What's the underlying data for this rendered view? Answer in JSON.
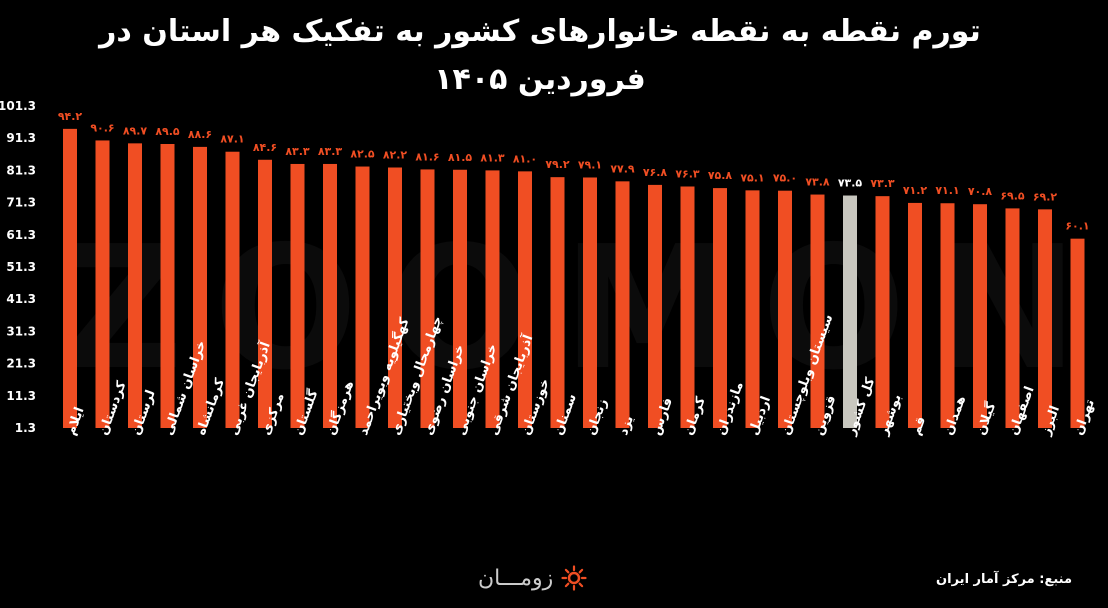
{
  "title_line1": "تورم نقطه به نقطه خانوارهای کشور به تفکیک هر استان در",
  "title_line2": "فروردین ۱۴۰۵",
  "source": "منبع: مرکز آمار ایران",
  "logo_text": "زومـــان",
  "watermark": "ZOOMON",
  "colors": {
    "bar": "#f04e23",
    "highlight": "#c8c7bf",
    "value_label": "#f04e23",
    "highlight_label": "#ffffff"
  },
  "chart_data": {
    "type": "bar",
    "title": "تورم نقطه به نقطه خانوارهای کشور به تفکیک هر استان در فروردین ۱۴۰۵",
    "ylim": [
      1.3,
      101.3
    ],
    "yticks": [
      "101.3",
      "91.3",
      "81.3",
      "71.3",
      "61.3",
      "51.3",
      "41.3",
      "31.3",
      "21.3",
      "11.3",
      "1.3"
    ],
    "highlight": "کل کشور",
    "categories": [
      "ایلام",
      "کردستان",
      "لرستان",
      "خراسان شمالی",
      "کرمانشاه",
      "آذربایجان غربی",
      "مرکزی",
      "گلستان",
      "هرمزگان",
      "کهگیلویه وبویراحمد",
      "چهارمحال وبختیاری",
      "خراسان رضوی",
      "خراسان جنوبی",
      "آذربایجان شرقی",
      "خوزستان",
      "سمنان",
      "زنجان",
      "یزد",
      "فارس",
      "کرمان",
      "مازندران",
      "اردبیل",
      "سیستان وبلوچستان",
      "قزوین",
      "کل کشور",
      "بوشهر",
      "قم",
      "همدان",
      "گیلان",
      "اصفهان",
      "البرز",
      "تهران"
    ],
    "values": [
      94.2,
      90.6,
      89.7,
      89.5,
      88.6,
      87.1,
      84.6,
      83.3,
      83.3,
      82.5,
      82.2,
      81.6,
      81.5,
      81.3,
      81.0,
      79.2,
      79.1,
      77.9,
      76.8,
      76.3,
      75.8,
      75.1,
      75.0,
      73.8,
      73.5,
      73.3,
      71.2,
      71.1,
      70.8,
      69.5,
      69.2,
      60.1
    ],
    "value_labels": [
      "۹۴.۲",
      "۹۰.۶",
      "۸۹.۷",
      "۸۹.۵",
      "۸۸.۶",
      "۸۷.۱",
      "۸۴.۶",
      "۸۳.۳",
      "۸۳.۳",
      "۸۲.۵",
      "۸۲.۲",
      "۸۱.۶",
      "۸۱.۵",
      "۸۱.۳",
      "۸۱.۰",
      "۷۹.۲",
      "۷۹.۱",
      "۷۷.۹",
      "۷۶.۸",
      "۷۶.۳",
      "۷۵.۸",
      "۷۵.۱",
      "۷۵.۰",
      "۷۳.۸",
      "۷۳.۵",
      "۷۳.۳",
      "۷۱.۲",
      "۷۱.۱",
      "۷۰.۸",
      "۶۹.۵",
      "۶۹.۲",
      "۶۰.۱"
    ]
  }
}
